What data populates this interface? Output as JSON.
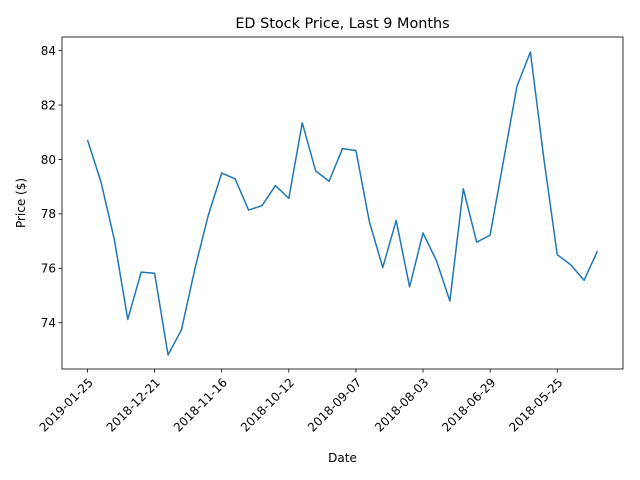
{
  "chart_data": {
    "type": "line",
    "title": "ED Stock Price, Last 9 Months",
    "xlabel": "Date",
    "ylabel": "Price ($)",
    "x_tick_labels": [
      "2019-01-25",
      "2018-12-21",
      "2018-11-16",
      "2018-10-12",
      "2018-09-07",
      "2018-08-03",
      "2018-06-29",
      "2018-05-25"
    ],
    "x_tick_order": [
      0,
      5,
      10,
      15,
      20,
      25,
      30,
      35
    ],
    "y_ticks": [
      74,
      76,
      78,
      80,
      82,
      84
    ],
    "ylim": [
      72.3,
      84.5
    ],
    "grid": false,
    "series": [
      {
        "color": "#1f77b4",
        "values": [
          80.72,
          79.18,
          77.06,
          74.12,
          75.86,
          75.82,
          72.82,
          73.74,
          75.98,
          77.95,
          79.5,
          79.29,
          78.14,
          78.3,
          79.04,
          78.57,
          81.35,
          79.58,
          79.2,
          80.4,
          80.33,
          77.72,
          76.03,
          77.76,
          75.32,
          77.3,
          76.28,
          74.8,
          78.92,
          76.96,
          77.22,
          79.96,
          82.69,
          83.95,
          80.04,
          76.5,
          76.13,
          75.56,
          76.64
        ]
      }
    ]
  }
}
